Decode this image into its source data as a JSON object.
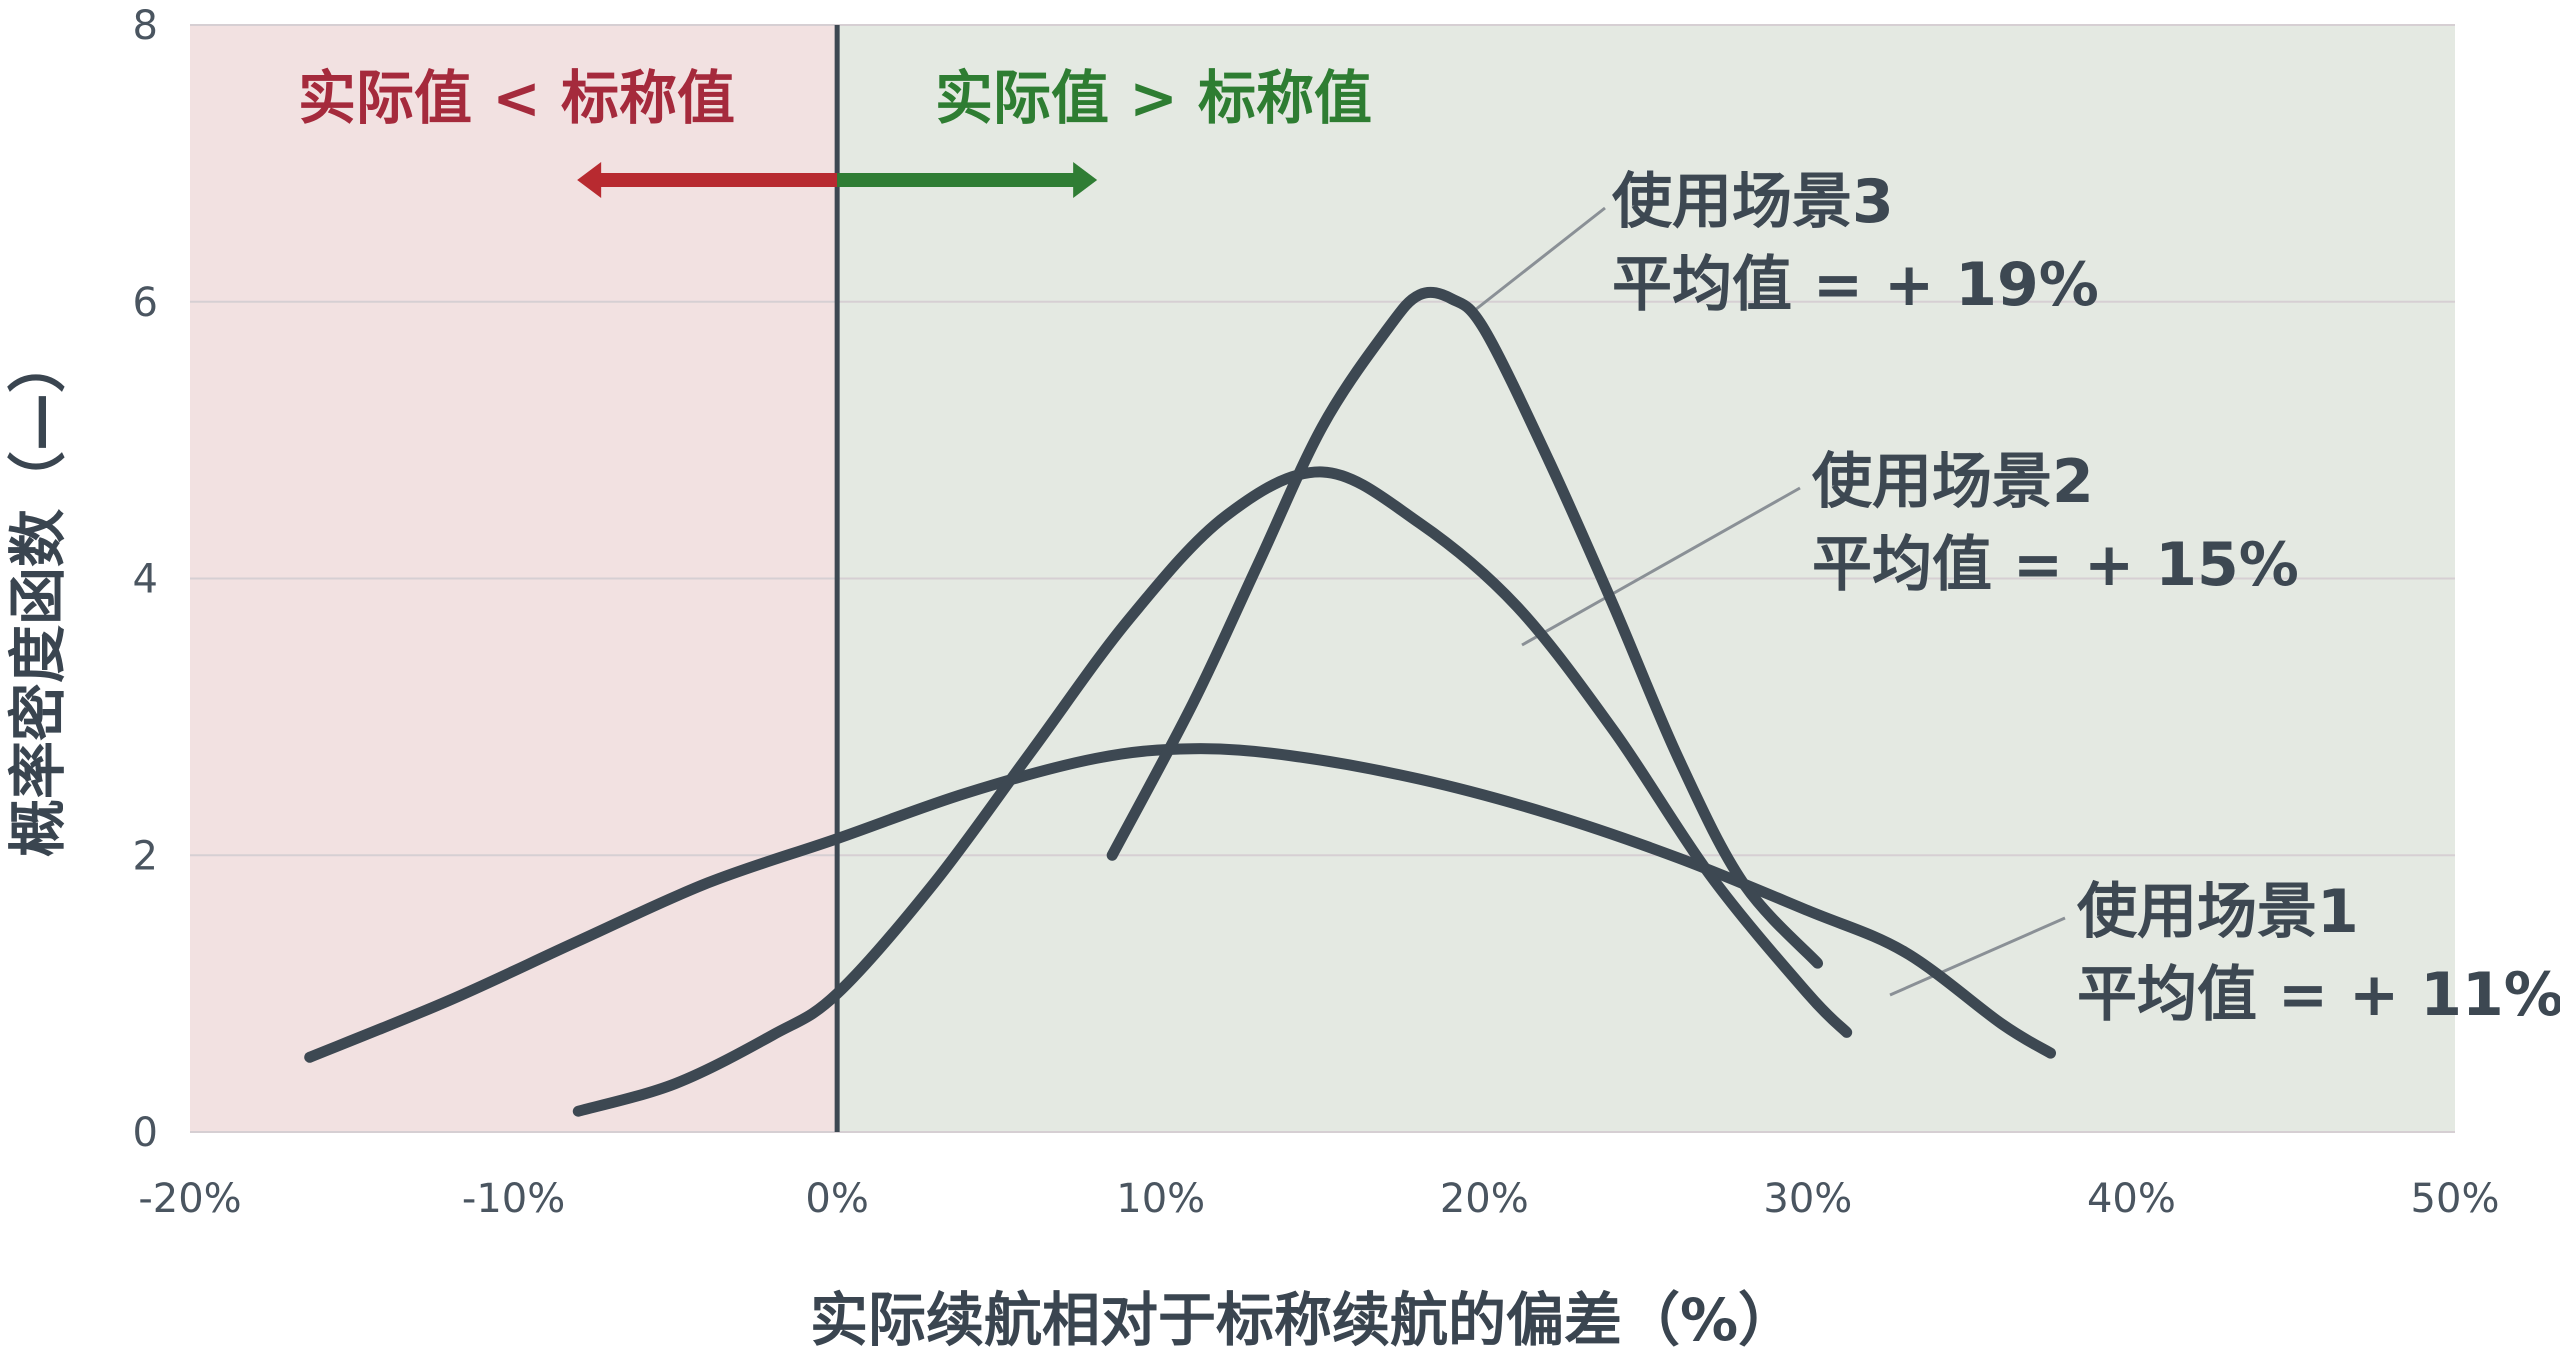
{
  "chart_data": {
    "type": "line",
    "xlabel": "实际续航相对于标称续航的偏差（%）",
    "ylabel": "概率密度函数（—）",
    "xlim": [
      -20,
      50
    ],
    "ylim": [
      0,
      8
    ],
    "x_ticks": [
      -20,
      -10,
      0,
      10,
      20,
      30,
      40,
      50
    ],
    "x_tick_labels": [
      "-20%",
      "-10%",
      "0%",
      "10%",
      "20%",
      "30%",
      "40%",
      "50%"
    ],
    "y_ticks": [
      0,
      2,
      4,
      6,
      8
    ],
    "y_tick_labels": [
      "0",
      "2",
      "4",
      "6",
      "8"
    ],
    "grid": "horizontal",
    "reference_line_x": 0,
    "regions": [
      {
        "label": "实际值 < 标称值",
        "from": -20,
        "to": 0,
        "color": "#f2e1e1",
        "label_color": "#a52a3c",
        "arrow_color": "#b82a30",
        "arrow_direction": "left"
      },
      {
        "label": "实际值 > 标称值",
        "from": 0,
        "to": 50,
        "color": "#e4e9e2",
        "label_color": "#2e7d32",
        "arrow_color": "#2f7d34",
        "arrow_direction": "right"
      }
    ],
    "series": [
      {
        "name": "使用场景1",
        "mean_label": "平均值 = + 11%",
        "color": "#3d4852",
        "points": [
          [
            -16.3,
            0.54
          ],
          [
            -12,
            0.95
          ],
          [
            -8,
            1.38
          ],
          [
            -4,
            1.8
          ],
          [
            0,
            2.12
          ],
          [
            4,
            2.45
          ],
          [
            8,
            2.7
          ],
          [
            11,
            2.77
          ],
          [
            14,
            2.72
          ],
          [
            18,
            2.55
          ],
          [
            22,
            2.3
          ],
          [
            26,
            1.98
          ],
          [
            30,
            1.6
          ],
          [
            33,
            1.3
          ],
          [
            36,
            0.78
          ],
          [
            37.5,
            0.57
          ]
        ]
      },
      {
        "name": "使用场景2",
        "mean_label": "平均值 = + 15%",
        "color": "#3d4852",
        "points": [
          [
            -8,
            0.15
          ],
          [
            -5,
            0.35
          ],
          [
            -2,
            0.7
          ],
          [
            0,
            1.0
          ],
          [
            3,
            1.8
          ],
          [
            6,
            2.75
          ],
          [
            9,
            3.7
          ],
          [
            12,
            4.45
          ],
          [
            15,
            4.77
          ],
          [
            18,
            4.4
          ],
          [
            21,
            3.8
          ],
          [
            24,
            2.9
          ],
          [
            27,
            1.85
          ],
          [
            30,
            1.0
          ],
          [
            31.2,
            0.72
          ]
        ]
      },
      {
        "name": "使用场景3",
        "mean_label": "平均值 = + 19%",
        "color": "#3d4852",
        "points": [
          [
            8.5,
            2.0
          ],
          [
            11,
            3.1
          ],
          [
            13,
            4.1
          ],
          [
            15,
            5.1
          ],
          [
            17,
            5.8
          ],
          [
            18,
            6.05
          ],
          [
            19,
            6.02
          ],
          [
            20,
            5.8
          ],
          [
            22,
            4.85
          ],
          [
            24,
            3.8
          ],
          [
            26,
            2.7
          ],
          [
            28,
            1.8
          ],
          [
            30.3,
            1.22
          ]
        ]
      }
    ],
    "annotations": [
      {
        "series": "使用场景3",
        "line1": "使用场景3",
        "line2": "平均值 = + 19%"
      },
      {
        "series": "使用场景2",
        "line1": "使用场景2",
        "line2": "平均值 = + 15%"
      },
      {
        "series": "使用场景1",
        "line1": "使用场景1",
        "line2": "平均值 = + 11%"
      }
    ]
  }
}
